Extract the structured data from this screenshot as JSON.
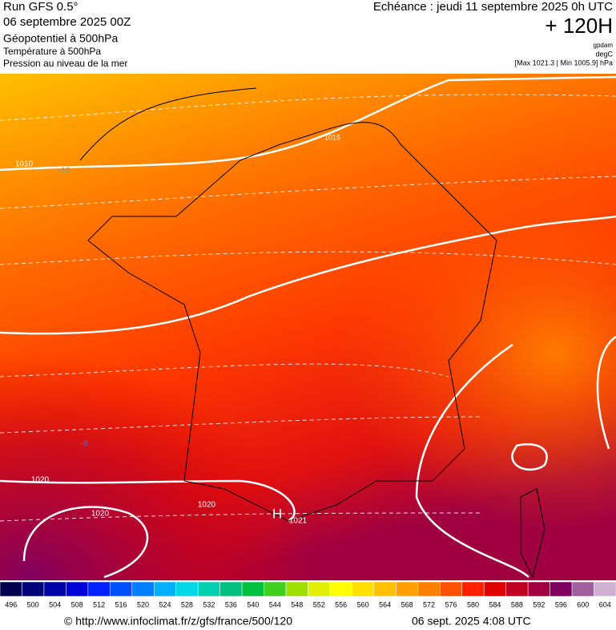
{
  "header": {
    "run": "Run GFS 0.5°",
    "date": "06 septembre 2025 00Z",
    "field1": "Géopotentiel à 500hPa",
    "field2": "Température à 500hPa",
    "field3": "Pression au niveau de la mer",
    "echeance": "Echéance : jeudi 11 septembre 2025 0h UTC",
    "lead": "+ 120H",
    "unit1": "gpdam",
    "unit2": "degC",
    "range": "[Max 1021.3 | Min 1005.9] hPa"
  },
  "map": {
    "labels": [
      "1010",
      "-16",
      "1015",
      "-8",
      "1020",
      "1020",
      "1020",
      "H",
      "1021"
    ]
  },
  "colorbar": {
    "values": [
      496,
      500,
      504,
      508,
      512,
      516,
      520,
      524,
      528,
      532,
      536,
      540,
      544,
      548,
      552,
      556,
      560,
      564,
      568,
      572,
      576,
      580,
      584,
      588,
      592,
      596,
      600,
      604
    ],
    "colors": [
      "#000050",
      "#00007a",
      "#0000a8",
      "#0000d8",
      "#0020ff",
      "#0050ff",
      "#0080ff",
      "#00b0ff",
      "#00d8e8",
      "#00d0b0",
      "#00c080",
      "#00c040",
      "#40d020",
      "#a0e000",
      "#e0f000",
      "#ffff00",
      "#ffe000",
      "#ffc000",
      "#ffa000",
      "#ff8000",
      "#ff5000",
      "#ff2000",
      "#e00000",
      "#c00020",
      "#a00040",
      "#800060",
      "#a060a0",
      "#d0b0d0"
    ]
  },
  "footer": {
    "url": "© http://www.infoclimat.fr/z/gfs/france/500/120",
    "time": "06 sept. 2025  4:08 UTC"
  }
}
